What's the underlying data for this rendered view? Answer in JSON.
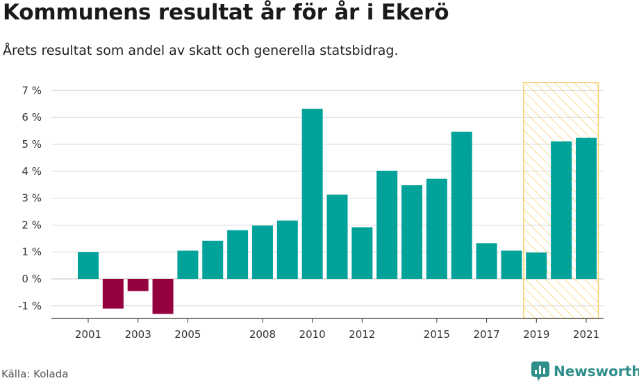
{
  "title": "Kommunens resultat år för år i Ekerö",
  "subtitle": "Årets resultat som andel av skatt och generella statsbidrag.",
  "source": "Källa: Kolada",
  "brand": "Newsworthy",
  "colors": {
    "positive": "#00a29a",
    "negative": "#95003e",
    "highlight": "#f9cf6e",
    "grid": "#d9d9d9",
    "brand": "#2f8f8a"
  },
  "chart_data": {
    "type": "bar",
    "x": [
      2001,
      2002,
      2003,
      2004,
      2005,
      2006,
      2007,
      2008,
      2009,
      2010,
      2011,
      2012,
      2013,
      2014,
      2015,
      2016,
      2017,
      2018,
      2019,
      2020,
      2021
    ],
    "values": [
      1.0,
      -1.1,
      -0.45,
      -1.3,
      1.05,
      1.42,
      1.81,
      1.98,
      2.17,
      6.32,
      3.13,
      1.92,
      4.02,
      3.48,
      3.72,
      5.47,
      1.33,
      1.05,
      0.98,
      5.11,
      5.24
    ],
    "ylim": [
      -1.5,
      7.3
    ],
    "yticks": [
      -1,
      0,
      1,
      2,
      3,
      4,
      5,
      6,
      7
    ],
    "ytick_labels": [
      "-1 %",
      "0 %",
      "1 %",
      "2 %",
      "3 %",
      "4 %",
      "5 %",
      "6 %",
      "7 %"
    ],
    "xtick_labels": [
      2001,
      2003,
      2005,
      2008,
      2010,
      2012,
      2015,
      2017,
      2019,
      2021
    ],
    "highlight_range": [
      2019,
      2021
    ],
    "grid": true
  }
}
